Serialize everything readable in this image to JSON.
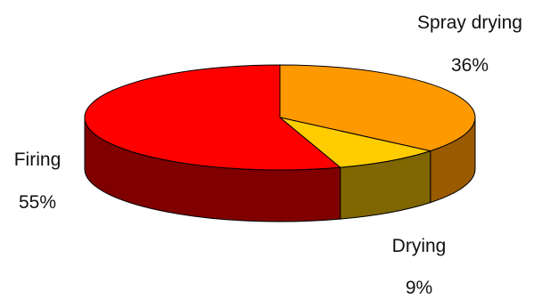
{
  "chart_data": {
    "type": "pie",
    "title": "",
    "style": "3d-exploded-free",
    "legend": "none",
    "slices": [
      {
        "label": "Spray drying",
        "value": 36,
        "value_label": "36%",
        "color": "#FF9900",
        "side_color": "#9A5A00"
      },
      {
        "label": "Drying",
        "value": 9,
        "value_label": "9%",
        "color": "#FFCC00",
        "side_color": "#7F6600"
      },
      {
        "label": "Firing",
        "value": 55,
        "value_label": "55%",
        "color": "#FF0000",
        "side_color": "#800000"
      }
    ]
  }
}
